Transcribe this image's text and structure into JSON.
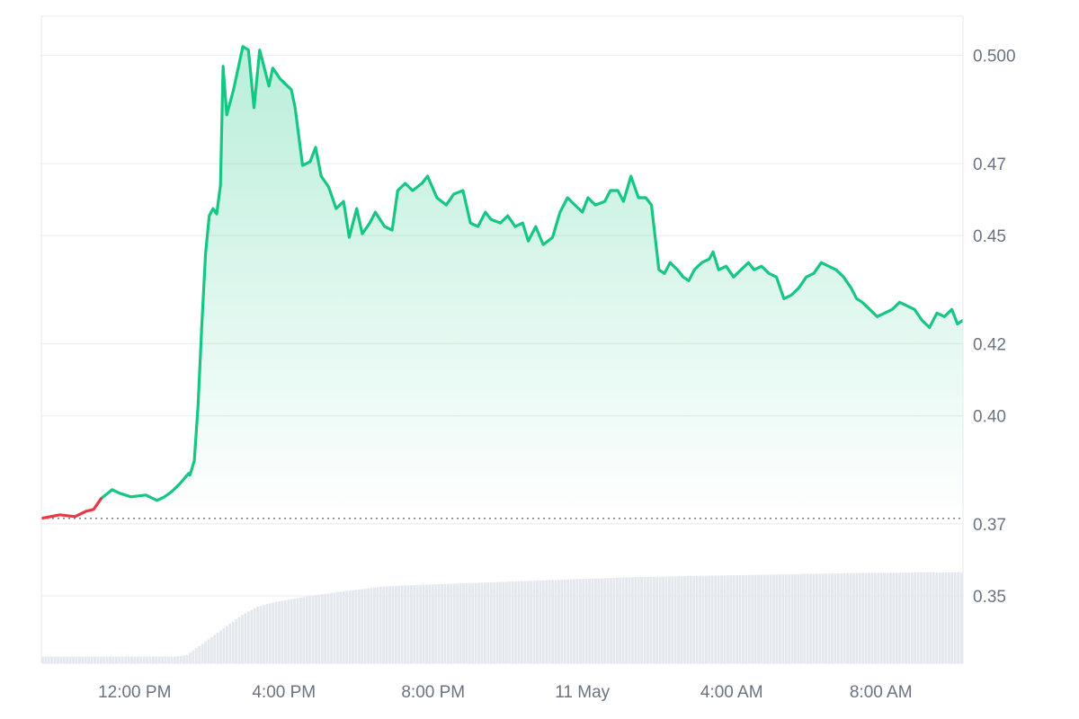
{
  "chart_data": {
    "type": "area",
    "title": "",
    "xlabel": "",
    "ylabel": "",
    "x_ticks": [
      {
        "label": "12:00 PM",
        "t": 2.5
      },
      {
        "label": "4:00 PM",
        "t": 6.5
      },
      {
        "label": "8:00 PM",
        "t": 10.5
      },
      {
        "label": "11 May",
        "t": 14.5
      },
      {
        "label": "4:00 AM",
        "t": 18.5
      },
      {
        "label": "8:00 AM",
        "t": 22.5
      }
    ],
    "x_unit": "hours elapsed since left edge of plot",
    "xlim": [
      0,
      24.7
    ],
    "y_ticks": [
      "0.500",
      "0.47",
      "0.45",
      "0.42",
      "0.40",
      "0.37",
      "0.35"
    ],
    "ylim": [
      0.3313,
      0.5109
    ],
    "reference_price": 0.3715,
    "colors": {
      "up": "#16c784",
      "down": "#ea3943",
      "grid": "#eceff3",
      "volume": "#e3e8ee",
      "axis_text": "#6b7280"
    },
    "price": [
      [
        0,
        0.3715
      ],
      [
        0.5,
        0.3725
      ],
      [
        0.9,
        0.372
      ],
      [
        1.2,
        0.3735
      ],
      [
        1.4,
        0.374
      ],
      [
        1.6,
        0.377
      ],
      [
        1.9,
        0.3795
      ],
      [
        2.1,
        0.3785
      ],
      [
        2.4,
        0.3775
      ],
      [
        2.8,
        0.378
      ],
      [
        3.1,
        0.3765
      ],
      [
        3.3,
        0.3775
      ],
      [
        3.5,
        0.379
      ],
      [
        3.7,
        0.381
      ],
      [
        3.95,
        0.384
      ],
      [
        3.98,
        0.3835
      ],
      [
        4.1,
        0.3875
      ],
      [
        4.2,
        0.403
      ],
      [
        4.3,
        0.425
      ],
      [
        4.4,
        0.445
      ],
      [
        4.5,
        0.4555
      ],
      [
        4.6,
        0.4575
      ],
      [
        4.7,
        0.456
      ],
      [
        4.8,
        0.464
      ],
      [
        4.87,
        0.497
      ],
      [
        4.97,
        0.4835
      ],
      [
        5.15,
        0.4905
      ],
      [
        5.4,
        0.5025
      ],
      [
        5.55,
        0.5015
      ],
      [
        5.7,
        0.4855
      ],
      [
        5.85,
        0.5015
      ],
      [
        6.0,
        0.4955
      ],
      [
        6.1,
        0.4915
      ],
      [
        6.2,
        0.4965
      ],
      [
        6.4,
        0.4935
      ],
      [
        6.7,
        0.4905
      ],
      [
        6.8,
        0.4855
      ],
      [
        7.0,
        0.4695
      ],
      [
        7.2,
        0.4705
      ],
      [
        7.35,
        0.4745
      ],
      [
        7.5,
        0.4665
      ],
      [
        7.7,
        0.4635
      ],
      [
        7.9,
        0.4575
      ],
      [
        8.1,
        0.4595
      ],
      [
        8.25,
        0.4495
      ],
      [
        8.45,
        0.4575
      ],
      [
        8.6,
        0.4505
      ],
      [
        8.8,
        0.4535
      ],
      [
        8.95,
        0.4565
      ],
      [
        9.2,
        0.4525
      ],
      [
        9.4,
        0.4515
      ],
      [
        9.55,
        0.4625
      ],
      [
        9.75,
        0.4645
      ],
      [
        9.95,
        0.4625
      ],
      [
        10.2,
        0.4645
      ],
      [
        10.35,
        0.4665
      ],
      [
        10.6,
        0.4605
      ],
      [
        10.85,
        0.4585
      ],
      [
        11.05,
        0.4615
      ],
      [
        11.3,
        0.4625
      ],
      [
        11.5,
        0.4535
      ],
      [
        11.7,
        0.4525
      ],
      [
        11.9,
        0.4565
      ],
      [
        12.05,
        0.4545
      ],
      [
        12.3,
        0.4535
      ],
      [
        12.5,
        0.4555
      ],
      [
        12.7,
        0.4525
      ],
      [
        12.9,
        0.4535
      ],
      [
        13.05,
        0.4485
      ],
      [
        13.25,
        0.4525
      ],
      [
        13.45,
        0.4475
      ],
      [
        13.7,
        0.4495
      ],
      [
        13.9,
        0.4565
      ],
      [
        14.1,
        0.4605
      ],
      [
        14.3,
        0.4585
      ],
      [
        14.5,
        0.4565
      ],
      [
        14.65,
        0.4605
      ],
      [
        14.85,
        0.4585
      ],
      [
        15.1,
        0.4595
      ],
      [
        15.25,
        0.4625
      ],
      [
        15.45,
        0.4625
      ],
      [
        15.6,
        0.4595
      ],
      [
        15.8,
        0.4665
      ],
      [
        16.0,
        0.4605
      ],
      [
        16.2,
        0.4605
      ],
      [
        16.35,
        0.4585
      ],
      [
        16.55,
        0.4405
      ],
      [
        16.7,
        0.4395
      ],
      [
        16.85,
        0.4425
      ],
      [
        17.05,
        0.4405
      ],
      [
        17.2,
        0.4385
      ],
      [
        17.35,
        0.4375
      ],
      [
        17.5,
        0.4405
      ],
      [
        17.7,
        0.4425
      ],
      [
        17.9,
        0.4435
      ],
      [
        18.0,
        0.4455
      ],
      [
        18.15,
        0.4405
      ],
      [
        18.35,
        0.4415
      ],
      [
        18.55,
        0.4385
      ],
      [
        18.75,
        0.4405
      ],
      [
        18.95,
        0.4425
      ],
      [
        19.1,
        0.4405
      ],
      [
        19.3,
        0.4415
      ],
      [
        19.5,
        0.4395
      ],
      [
        19.7,
        0.4385
      ],
      [
        19.9,
        0.4325
      ],
      [
        20.1,
        0.4335
      ],
      [
        20.3,
        0.4355
      ],
      [
        20.5,
        0.4385
      ],
      [
        20.7,
        0.4395
      ],
      [
        20.9,
        0.4425
      ],
      [
        21.1,
        0.4415
      ],
      [
        21.3,
        0.4405
      ],
      [
        21.5,
        0.4385
      ],
      [
        21.7,
        0.4355
      ],
      [
        21.85,
        0.4325
      ],
      [
        22.0,
        0.4315
      ],
      [
        22.2,
        0.4295
      ],
      [
        22.4,
        0.4275
      ],
      [
        22.6,
        0.4285
      ],
      [
        22.8,
        0.4295
      ],
      [
        23.0,
        0.4315
      ],
      [
        23.2,
        0.4305
      ],
      [
        23.4,
        0.4295
      ],
      [
        23.6,
        0.4265
      ],
      [
        23.8,
        0.4245
      ],
      [
        24.0,
        0.4285
      ],
      [
        24.2,
        0.4275
      ],
      [
        24.4,
        0.4295
      ],
      [
        24.55,
        0.4255
      ],
      [
        24.7,
        0.4265
      ]
    ],
    "volume": [
      [
        0,
        0.05
      ],
      [
        3.0,
        0.05
      ],
      [
        3.1,
        0.05
      ],
      [
        3.6,
        0.05
      ],
      [
        3.9,
        0.06
      ],
      [
        4.2,
        0.12
      ],
      [
        4.6,
        0.2
      ],
      [
        5.0,
        0.28
      ],
      [
        5.4,
        0.36
      ],
      [
        5.8,
        0.42
      ],
      [
        6.2,
        0.45
      ],
      [
        6.6,
        0.47
      ],
      [
        7.0,
        0.49
      ],
      [
        7.5,
        0.51
      ],
      [
        8.0,
        0.53
      ],
      [
        8.6,
        0.55
      ],
      [
        9.2,
        0.57
      ],
      [
        10.0,
        0.58
      ],
      [
        11.0,
        0.59
      ],
      [
        12.0,
        0.6
      ],
      [
        13.0,
        0.61
      ],
      [
        14.0,
        0.62
      ],
      [
        15.0,
        0.63
      ],
      [
        16.0,
        0.64
      ],
      [
        17.0,
        0.645
      ],
      [
        18.0,
        0.65
      ],
      [
        19.0,
        0.655
      ],
      [
        20.0,
        0.66
      ],
      [
        21.0,
        0.665
      ],
      [
        22.0,
        0.67
      ],
      [
        23.0,
        0.672
      ],
      [
        24.0,
        0.674
      ],
      [
        24.7,
        0.675
      ]
    ]
  }
}
